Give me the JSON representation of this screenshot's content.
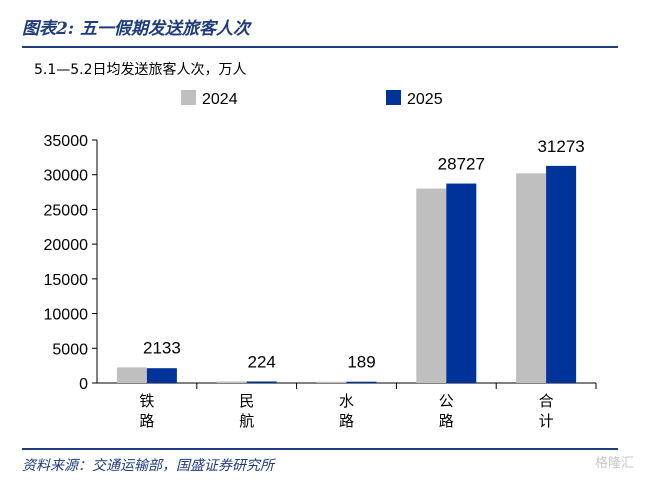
{
  "header": {
    "figure_label": "图表2:",
    "title": "五一假期发送旅客人次"
  },
  "source": "资料来源：交通运输部，国盛证券研究所",
  "watermark": "格隆汇",
  "chart_data": {
    "type": "bar",
    "title": "5.1—5.2日均发送旅客人次，万人",
    "categories": [
      "铁路",
      "民航",
      "水路",
      "公路",
      "合计"
    ],
    "series": [
      {
        "name": "2024",
        "color": "#bfbfbf",
        "values": [
          2250,
          220,
          185,
          28000,
          30200
        ]
      },
      {
        "name": "2025",
        "color": "#003399",
        "values": [
          2133,
          224,
          189,
          28727,
          31273
        ]
      }
    ],
    "data_labels": [
      "2133",
      "224",
      "189",
      "28727",
      "31273"
    ],
    "yticks": [
      "0",
      "5000",
      "10000",
      "15000",
      "20000",
      "25000",
      "30000",
      "35000"
    ],
    "ylim": [
      0,
      35000
    ],
    "legend_position": "top",
    "grid": false
  }
}
